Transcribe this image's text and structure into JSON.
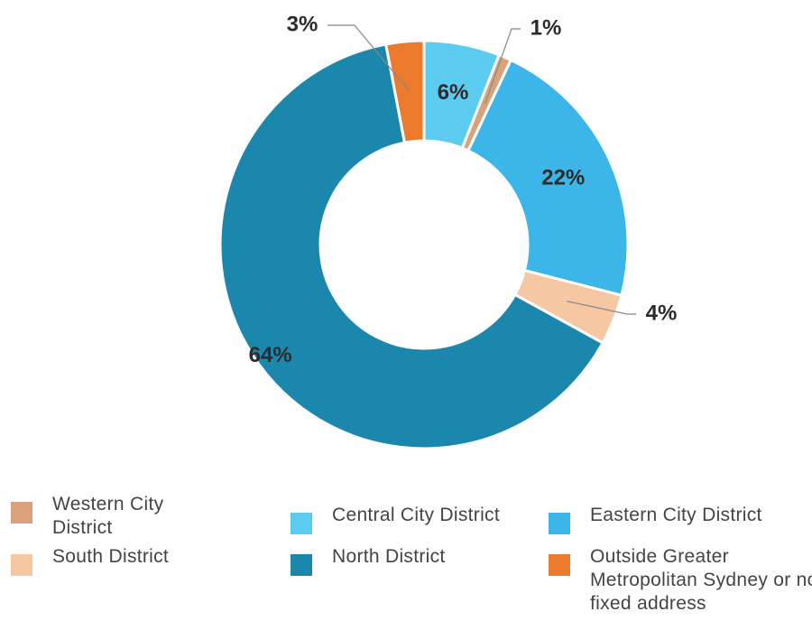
{
  "chart_data": {
    "type": "donut",
    "categories": [
      "Central City District",
      "Western City District",
      "Eastern City District",
      "South District",
      "North District",
      "Outside Greater Metropolitan Sydney or no fixed address"
    ],
    "values": [
      6,
      1,
      22,
      4,
      64,
      3
    ],
    "value_labels": [
      "6%",
      "1%",
      "22%",
      "4%",
      "64%",
      "3%"
    ],
    "colors": [
      "#5ccbf0",
      "#d9a27c",
      "#3cb5e8",
      "#f5c7a3",
      "#1b87ad",
      "#ec7a2c"
    ]
  }
}
